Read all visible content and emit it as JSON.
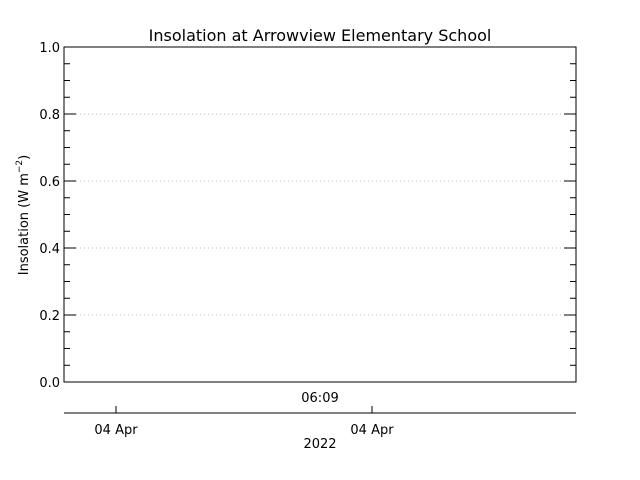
{
  "chart_data": {
    "type": "line",
    "title": "Insolation at Arrowview Elementary School",
    "ylabel_main": "Insolation (W m",
    "ylabel_sup": "−2",
    "ylabel_tail": ")",
    "xlabel": "2022",
    "ylim": [
      0.0,
      1.0
    ],
    "y_ticks": [
      0.0,
      0.2,
      0.4,
      0.6,
      0.8,
      1.0
    ],
    "y_tick_labels": [
      "0.0",
      "0.2",
      "0.4",
      "0.6",
      "0.8",
      "1.0"
    ],
    "time_label": "06:09",
    "x_tick_labels": [
      "04 Apr",
      "04 Apr"
    ],
    "grid": true,
    "series": [],
    "colors": {
      "axis": "#000000",
      "grid": "#bbbbbb",
      "background": "#ffffff"
    }
  }
}
